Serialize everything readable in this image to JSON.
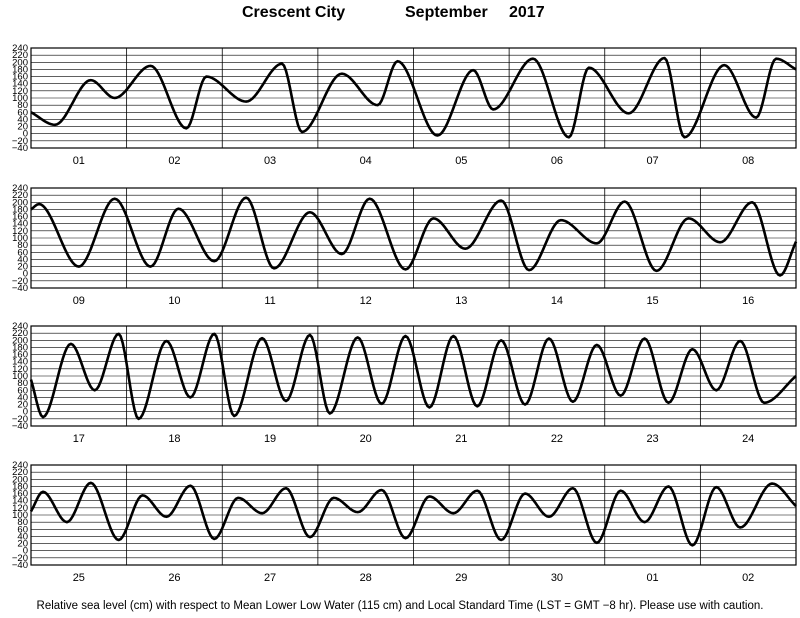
{
  "header": {
    "station": "Crescent City",
    "month": "September",
    "year": "2017"
  },
  "footer": {
    "note": "Relative sea level (cm) with respect to Mean Lower Low Water (115 cm) and Local Standard Time (LST = GMT −8 hr). Please use with caution."
  },
  "chart_data": {
    "type": "line",
    "title": "Crescent City September 2017",
    "xlabel": "",
    "ylabel": "",
    "ylim": [
      -40,
      240
    ],
    "yticks": [
      "240",
      "220",
      "200",
      "180",
      "160",
      "140",
      "120",
      "100",
      "80",
      "60",
      "40",
      "20",
      "0",
      "−20",
      "−40"
    ],
    "grid": true,
    "legend": "none",
    "line_color": "#000000",
    "panels": [
      {
        "days": [
          "01",
          "02",
          "03",
          "04",
          "05",
          "06",
          "07",
          "08"
        ],
        "extrema_hours": [
          0,
          6,
          15,
          21,
          30,
          39,
          44,
          54,
          63,
          68,
          78,
          87,
          92,
          102,
          111,
          116,
          126,
          135,
          140,
          150,
          159,
          164,
          174,
          182,
          187,
          192
        ],
        "extrema_values": [
          60,
          25,
          150,
          100,
          190,
          15,
          160,
          90,
          196,
          5,
          168,
          80,
          203,
          -5,
          178,
          68,
          210,
          -10,
          185,
          57,
          212,
          -10,
          192,
          45,
          210,
          180
        ]
      },
      {
        "days": [
          "09",
          "10",
          "11",
          "12",
          "13",
          "14",
          "15",
          "16"
        ],
        "extrema_hours": [
          0,
          2,
          12,
          21,
          30,
          37,
          46,
          54,
          61,
          70,
          78,
          85,
          94,
          101,
          109,
          118,
          125,
          133,
          142,
          149,
          157,
          165,
          173,
          181,
          188,
          192
        ],
        "extrema_values": [
          180,
          195,
          20,
          210,
          20,
          182,
          35,
          213,
          15,
          172,
          55,
          210,
          12,
          155,
          70,
          205,
          10,
          150,
          85,
          202,
          8,
          155,
          88,
          200,
          -5,
          90
        ],
        "extrema_hours_tail": [],
        "extrema_values_tail": []
      },
      {
        "days": [
          "17",
          "18",
          "19",
          "20",
          "21",
          "22",
          "23",
          "24"
        ],
        "extrema_hours": [
          0,
          3,
          10,
          16,
          22,
          27,
          34,
          40,
          46,
          51,
          58,
          64,
          70,
          75,
          82,
          88,
          94,
          100,
          106,
          112,
          118,
          124,
          130,
          136,
          142,
          148,
          154,
          160,
          166,
          172,
          178,
          184,
          192
        ],
        "extrema_values": [
          90,
          -15,
          190,
          60,
          218,
          -20,
          198,
          40,
          218,
          -12,
          206,
          30,
          215,
          -5,
          208,
          22,
          212,
          12,
          212,
          15,
          200,
          20,
          205,
          28,
          187,
          45,
          205,
          25,
          175,
          60,
          198,
          25,
          100
        ]
      },
      {
        "days": [
          "25",
          "26",
          "27",
          "28",
          "29",
          "30",
          "01",
          "02"
        ],
        "extrema_hours": [
          0,
          3,
          9,
          15,
          22,
          28,
          34,
          40,
          46,
          52,
          58,
          64,
          70,
          76,
          82,
          88,
          94,
          100,
          106,
          112,
          118,
          124,
          130,
          136,
          142,
          148,
          154,
          160,
          166,
          172,
          178,
          186,
          192
        ],
        "extrema_values": [
          110,
          165,
          80,
          190,
          30,
          155,
          95,
          182,
          33,
          148,
          105,
          175,
          38,
          148,
          108,
          170,
          35,
          152,
          105,
          168,
          30,
          160,
          95,
          175,
          22,
          168,
          80,
          180,
          15,
          178,
          65,
          188,
          125
        ]
      }
    ]
  }
}
